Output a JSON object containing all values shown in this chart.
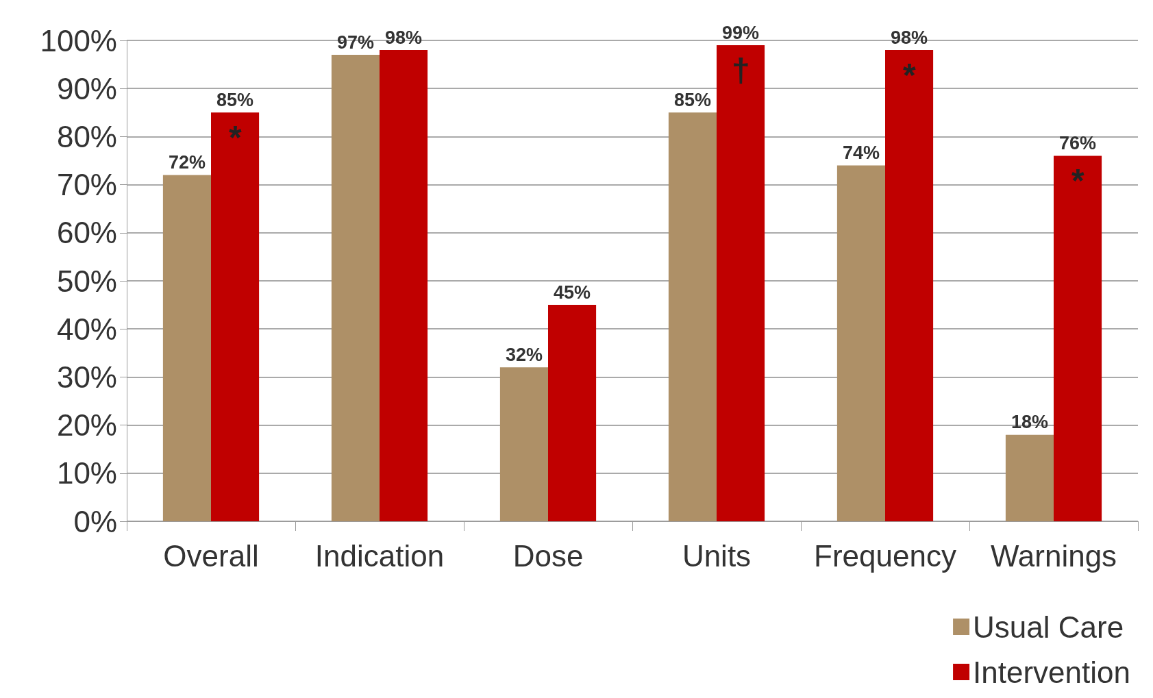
{
  "chart_data": {
    "type": "bar",
    "categories": [
      "Overall",
      "Indication",
      "Dose",
      "Units",
      "Frequency",
      "Warnings"
    ],
    "series": [
      {
        "name": "Usual Care",
        "color": "#ae9067",
        "values": [
          72,
          97,
          32,
          85,
          74,
          18
        ],
        "value_labels": [
          "72%",
          "97%",
          "32%",
          "85%",
          "74%",
          "18%"
        ]
      },
      {
        "name": "Intervention",
        "color": "#c00000",
        "values": [
          85,
          98,
          45,
          99,
          98,
          76
        ],
        "value_labels": [
          "85%",
          "98%",
          "45%",
          "99%",
          "98%",
          "76%"
        ]
      }
    ],
    "ylim": [
      0,
      100
    ],
    "yticks": [
      {
        "value": 0,
        "label": "0%"
      },
      {
        "value": 10,
        "label": "10%"
      },
      {
        "value": 20,
        "label": "20%"
      },
      {
        "value": 30,
        "label": "30%"
      },
      {
        "value": 40,
        "label": "40%"
      },
      {
        "value": 50,
        "label": "50%"
      },
      {
        "value": 60,
        "label": "60%"
      },
      {
        "value": 70,
        "label": "70%"
      },
      {
        "value": 80,
        "label": "80%"
      },
      {
        "value": 90,
        "label": "90%"
      },
      {
        "value": 100,
        "label": "100%"
      }
    ],
    "annotations": [
      {
        "text": "*",
        "x": "Overall",
        "y": 85
      },
      {
        "text": "†",
        "x": "Units",
        "y": 99
      },
      {
        "text": "*",
        "x": "Frequency",
        "y": 98
      },
      {
        "text": "*",
        "x": "Warnings",
        "y": 76
      }
    ],
    "grid": "y",
    "legend": "bottom right"
  }
}
